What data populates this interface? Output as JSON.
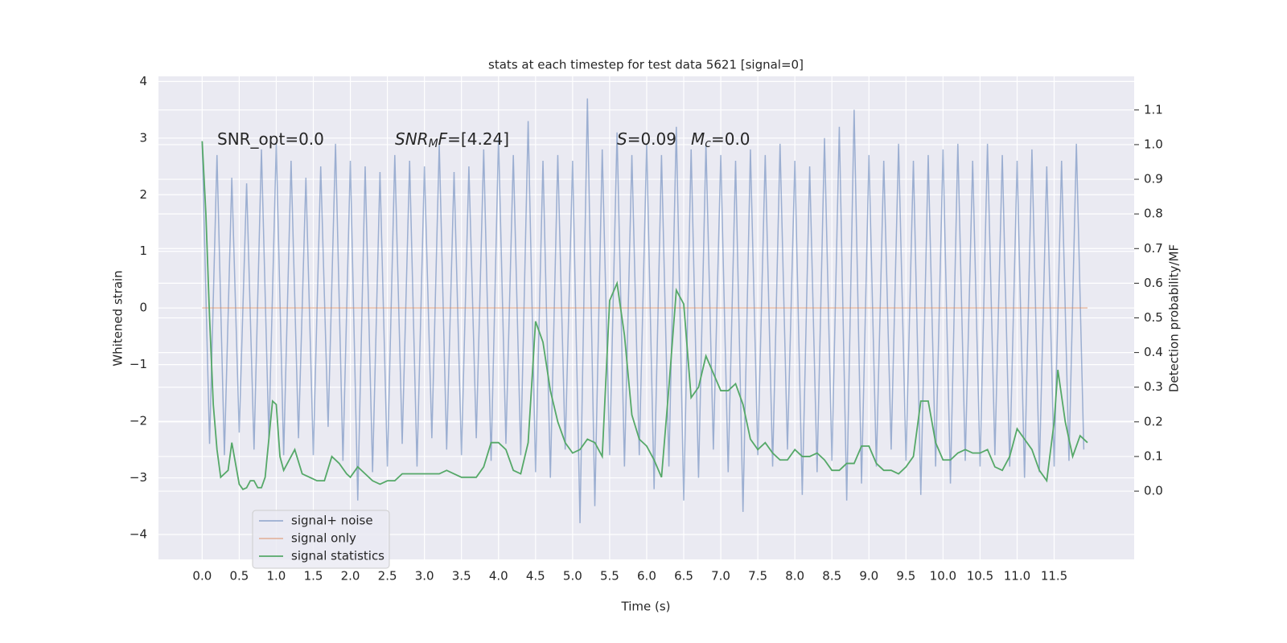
{
  "chart_data": {
    "type": "line",
    "title": "stats at each timestep for test data 5621 [signal=0]",
    "xlabel": "Time (s)",
    "ylabel": "Whitened strain",
    "y2label": "Detection probability/MF",
    "annotations": [
      {
        "parts": [
          {
            "t": "SNR_opt=0.0"
          }
        ]
      },
      {
        "parts": [
          {
            "t": "SNR",
            "italic": true
          },
          {
            "t": "M",
            "italic": true,
            "sub": true
          },
          {
            "t": "F",
            "italic": true
          },
          {
            "t": "=[4.24]"
          }
        ]
      },
      {
        "parts": [
          {
            "t": "S",
            "italic": true
          },
          {
            "t": "=0.09"
          }
        ]
      },
      {
        "parts": [
          {
            "t": "M",
            "italic": true
          },
          {
            "t": "c",
            "italic": true,
            "sub": true
          },
          {
            "t": "=0.0"
          }
        ]
      }
    ],
    "xlim": [
      -0.59,
      12.58
    ],
    "ylim": [
      -4.44,
      4.09
    ],
    "y2lim": [
      -0.197,
      1.197
    ],
    "xticks": [
      {
        "value": 0,
        "label": "0.0"
      },
      0.5,
      {
        "value": 1,
        "label": "1.0"
      },
      1.5,
      {
        "value": 2,
        "label": "2.0"
      },
      2.5,
      {
        "value": 3,
        "label": "3.0"
      },
      3.5,
      {
        "value": 4,
        "label": "4.0"
      },
      4.5,
      {
        "value": 5,
        "label": "5.0"
      },
      5.5,
      {
        "value": 6,
        "label": "6.0"
      },
      6.5,
      {
        "value": 7,
        "label": "7.0"
      },
      7.5,
      {
        "value": 8,
        "label": "8.0"
      },
      8.5,
      {
        "value": 9,
        "label": "9.0"
      },
      9.5,
      {
        "value": 10,
        "label": "10.0"
      },
      10.5,
      {
        "value": 11,
        "label": "11.0"
      },
      11.5
    ],
    "yticks": [
      {
        "value": -4,
        "label": "−4"
      },
      {
        "value": -3,
        "label": "−3"
      },
      {
        "value": -2,
        "label": "−2"
      },
      {
        "value": -1,
        "label": "−1"
      },
      0,
      1,
      2,
      3,
      4
    ],
    "y2ticks": [
      {
        "value": 0,
        "label": "0.0"
      },
      0.1,
      0.2,
      0.3,
      0.4,
      0.5,
      0.6,
      0.7,
      0.8,
      0.9,
      {
        "value": 1,
        "label": "1.0"
      },
      1.1
    ],
    "grid": true,
    "legend": "lower left",
    "series": [
      {
        "name": "signal+ noise",
        "color": "#4c72b0",
        "axis": "y",
        "x": [
          0.0,
          0.1,
          0.2,
          0.3,
          0.4,
          0.5,
          0.6,
          0.7,
          0.8,
          0.9,
          1.0,
          1.1,
          1.2,
          1.3,
          1.4,
          1.5,
          1.6,
          1.7,
          1.8,
          1.9,
          2.0,
          2.1,
          2.2,
          2.3,
          2.4,
          2.5,
          2.6,
          2.7,
          2.8,
          2.9,
          3.0,
          3.1,
          3.2,
          3.3,
          3.4,
          3.5,
          3.6,
          3.7,
          3.8,
          3.9,
          4.0,
          4.1,
          4.2,
          4.3,
          4.4,
          4.5,
          4.6,
          4.7,
          4.8,
          4.9,
          5.0,
          5.1,
          5.2,
          5.3,
          5.4,
          5.5,
          5.6,
          5.7,
          5.8,
          5.9,
          6.0,
          6.1,
          6.2,
          6.3,
          6.4,
          6.5,
          6.6,
          6.7,
          6.8,
          6.9,
          7.0,
          7.1,
          7.2,
          7.3,
          7.4,
          7.5,
          7.6,
          7.7,
          7.8,
          7.9,
          8.0,
          8.1,
          8.2,
          8.3,
          8.4,
          8.5,
          8.6,
          8.7,
          8.8,
          8.9,
          9.0,
          9.1,
          9.2,
          9.3,
          9.4,
          9.5,
          9.6,
          9.7,
          9.8,
          9.9,
          10.0,
          10.1,
          10.2,
          10.3,
          10.4,
          10.5,
          10.6,
          10.7,
          10.8,
          10.9,
          11.0,
          11.1,
          11.2,
          11.3,
          11.4,
          11.5,
          11.6,
          11.7,
          11.8,
          11.9
        ],
        "values": [
          2.9,
          -2.4,
          2.7,
          -2.6,
          2.3,
          -2.2,
          2.2,
          -2.5,
          2.8,
          -2.3,
          2.9,
          -2.6,
          2.6,
          -2.3,
          2.3,
          -2.6,
          2.5,
          -2.1,
          2.9,
          -2.7,
          2.6,
          -3.4,
          2.5,
          -2.9,
          2.4,
          -2.8,
          2.7,
          -2.4,
          2.6,
          -2.8,
          2.5,
          -2.3,
          2.9,
          -2.5,
          2.4,
          -2.6,
          2.5,
          -2.3,
          2.8,
          -2.7,
          3.0,
          -2.4,
          2.7,
          -2.6,
          3.3,
          -2.9,
          2.6,
          -3.0,
          2.7,
          -2.5,
          2.6,
          -3.8,
          3.7,
          -3.5,
          2.8,
          -2.6,
          3.1,
          -2.8,
          2.7,
          -2.6,
          2.9,
          -3.2,
          2.7,
          -2.8,
          3.2,
          -3.4,
          2.8,
          -3.0,
          2.9,
          -2.5,
          2.7,
          -2.9,
          2.6,
          -3.6,
          2.8,
          -2.6,
          2.7,
          -2.8,
          2.9,
          -2.5,
          2.6,
          -3.3,
          2.5,
          -2.9,
          3.0,
          -2.7,
          3.2,
          -3.4,
          3.5,
          -3.1,
          2.7,
          -2.8,
          2.6,
          -2.5,
          2.9,
          -2.7,
          2.6,
          -3.3,
          2.7,
          -2.8,
          2.8,
          -3.1,
          2.9,
          -2.7,
          2.6,
          -2.8,
          2.9,
          -2.6,
          2.7,
          -2.8,
          2.6,
          -3.0,
          2.8,
          -2.9,
          2.5,
          -2.8,
          2.6,
          -2.7,
          2.9,
          -2.5
        ]
      },
      {
        "name": "signal only",
        "color": "#dd8452",
        "axis": "y",
        "x": [
          0.0,
          11.95
        ],
        "values": [
          0,
          0
        ]
      },
      {
        "name": "signal statistics",
        "color": "#55a868",
        "axis": "y2",
        "x": [
          0.0,
          0.05,
          0.1,
          0.15,
          0.2,
          0.25,
          0.35,
          0.4,
          0.5,
          0.55,
          0.6,
          0.65,
          0.7,
          0.75,
          0.8,
          0.85,
          0.95,
          1.0,
          1.05,
          1.1,
          1.2,
          1.25,
          1.35,
          1.45,
          1.55,
          1.65,
          1.75,
          1.85,
          1.95,
          2.0,
          2.1,
          2.2,
          2.3,
          2.4,
          2.5,
          2.6,
          2.7,
          2.8,
          2.9,
          3.0,
          3.1,
          3.2,
          3.3,
          3.4,
          3.5,
          3.6,
          3.7,
          3.8,
          3.9,
          4.0,
          4.1,
          4.2,
          4.3,
          4.4,
          4.5,
          4.6,
          4.7,
          4.8,
          4.9,
          5.0,
          5.1,
          5.2,
          5.3,
          5.4,
          5.5,
          5.6,
          5.7,
          5.8,
          5.9,
          6.0,
          6.1,
          6.2,
          6.3,
          6.4,
          6.5,
          6.6,
          6.7,
          6.8,
          6.9,
          7.0,
          7.1,
          7.2,
          7.3,
          7.4,
          7.5,
          7.6,
          7.7,
          7.8,
          7.9,
          8.0,
          8.1,
          8.2,
          8.3,
          8.4,
          8.5,
          8.6,
          8.7,
          8.8,
          8.9,
          9.0,
          9.1,
          9.2,
          9.3,
          9.4,
          9.5,
          9.6,
          9.7,
          9.8,
          9.9,
          10.0,
          10.1,
          10.2,
          10.3,
          10.4,
          10.5,
          10.6,
          10.7,
          10.8,
          10.9,
          11.0,
          11.1,
          11.2,
          11.3,
          11.4,
          11.5,
          11.55,
          11.65,
          11.75,
          11.85,
          11.95
        ],
        "values": [
          1.01,
          0.8,
          0.5,
          0.25,
          0.12,
          0.04,
          0.06,
          0.14,
          0.02,
          0.005,
          0.01,
          0.03,
          0.03,
          0.01,
          0.01,
          0.04,
          0.26,
          0.25,
          0.1,
          0.06,
          0.1,
          0.12,
          0.05,
          0.04,
          0.03,
          0.03,
          0.1,
          0.08,
          0.05,
          0.04,
          0.07,
          0.05,
          0.03,
          0.02,
          0.03,
          0.03,
          0.05,
          0.05,
          0.05,
          0.05,
          0.05,
          0.05,
          0.06,
          0.05,
          0.04,
          0.04,
          0.04,
          0.07,
          0.14,
          0.14,
          0.12,
          0.06,
          0.05,
          0.14,
          0.49,
          0.43,
          0.29,
          0.2,
          0.14,
          0.11,
          0.12,
          0.15,
          0.14,
          0.1,
          0.55,
          0.6,
          0.45,
          0.22,
          0.15,
          0.13,
          0.09,
          0.04,
          0.3,
          0.58,
          0.54,
          0.27,
          0.3,
          0.39,
          0.34,
          0.29,
          0.29,
          0.31,
          0.25,
          0.15,
          0.12,
          0.14,
          0.11,
          0.09,
          0.09,
          0.12,
          0.1,
          0.1,
          0.11,
          0.09,
          0.06,
          0.06,
          0.08,
          0.08,
          0.13,
          0.13,
          0.08,
          0.06,
          0.06,
          0.05,
          0.07,
          0.1,
          0.26,
          0.26,
          0.14,
          0.09,
          0.09,
          0.11,
          0.12,
          0.11,
          0.11,
          0.12,
          0.07,
          0.06,
          0.1,
          0.18,
          0.15,
          0.12,
          0.06,
          0.03,
          0.2,
          0.35,
          0.2,
          0.1,
          0.16,
          0.14
        ]
      }
    ]
  }
}
